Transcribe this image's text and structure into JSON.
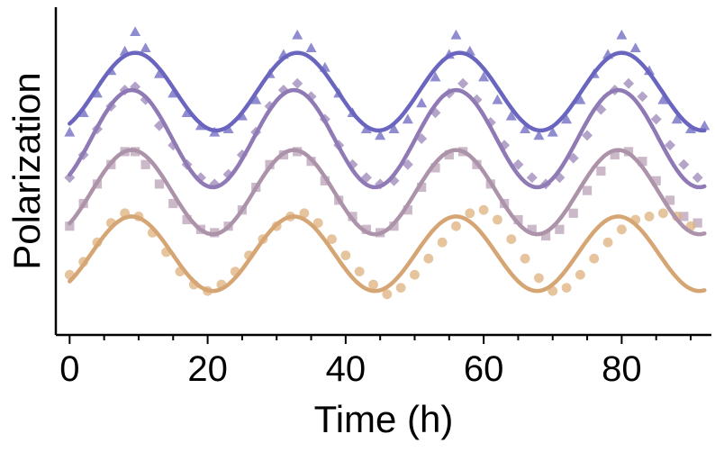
{
  "chart_data": {
    "type": "scatter",
    "title": "",
    "xlabel": "Time (h)",
    "ylabel": "Polarization",
    "xlim": [
      -2,
      93
    ],
    "ylim": [
      0,
      1
    ],
    "x_ticks": [
      0,
      20,
      40,
      60,
      80
    ],
    "x_tick_labels": [
      "0",
      "20",
      "40",
      "60",
      "80"
    ],
    "y_tick_labels": [],
    "grid": false,
    "legend": "none",
    "period_h": 23.5,
    "series": [
      {
        "marker": "triangle",
        "color": "#6a66c0",
        "fit_color": "#6a66c0",
        "x": [
          0,
          2,
          4,
          6,
          8,
          9.5,
          11,
          13,
          15,
          17,
          19,
          21,
          23,
          25,
          27,
          29,
          31,
          33,
          35,
          37,
          39,
          41,
          43,
          45,
          47,
          49,
          51,
          53,
          55,
          56,
          58,
          60,
          62,
          64,
          66,
          68,
          70,
          72,
          74,
          76,
          78,
          80,
          82,
          84,
          86,
          88,
          90,
          92
        ],
        "y": [
          0.62,
          0.68,
          0.74,
          0.81,
          0.87,
          0.93,
          0.88,
          0.8,
          0.74,
          0.68,
          0.64,
          0.62,
          0.63,
          0.67,
          0.72,
          0.8,
          0.86,
          0.92,
          0.88,
          0.82,
          0.74,
          0.68,
          0.63,
          0.61,
          0.63,
          0.66,
          0.71,
          0.79,
          0.86,
          0.92,
          0.87,
          0.79,
          0.72,
          0.67,
          0.63,
          0.61,
          0.62,
          0.66,
          0.72,
          0.8,
          0.86,
          0.92,
          0.88,
          0.81,
          0.72,
          0.66,
          0.63,
          0.64
        ],
        "fit": {
          "mean": 0.745,
          "amplitude": 0.12,
          "phase_h": 9.5
        }
      },
      {
        "marker": "diamond",
        "color": "#9b86b8",
        "fit_color": "#8f7ab5",
        "x": [
          0,
          2,
          4,
          6,
          8,
          9.5,
          11,
          13,
          15,
          17,
          19,
          21,
          23,
          25,
          27,
          29,
          31,
          33,
          35,
          37,
          39,
          41,
          43,
          45,
          47,
          49,
          51,
          53,
          55,
          57,
          59,
          61,
          63,
          65,
          67,
          69,
          71,
          73,
          75,
          77,
          79,
          81,
          83,
          85,
          87,
          89,
          91
        ],
        "y": [
          0.48,
          0.55,
          0.63,
          0.7,
          0.75,
          0.76,
          0.72,
          0.64,
          0.58,
          0.52,
          0.48,
          0.46,
          0.49,
          0.55,
          0.62,
          0.7,
          0.75,
          0.77,
          0.73,
          0.66,
          0.58,
          0.52,
          0.48,
          0.46,
          0.47,
          0.52,
          0.6,
          0.68,
          0.74,
          0.77,
          0.72,
          0.65,
          0.58,
          0.52,
          0.48,
          0.46,
          0.48,
          0.54,
          0.61,
          0.69,
          0.75,
          0.77,
          0.73,
          0.66,
          0.58,
          0.52,
          0.48
        ],
        "fit": {
          "mean": 0.6,
          "amplitude": 0.15,
          "phase_h": 9.0
        }
      },
      {
        "marker": "square",
        "color": "#b9a0b5",
        "fit_color": "#ad93aa",
        "x": [
          0,
          2,
          4,
          6,
          8,
          9.5,
          11,
          13,
          15,
          17,
          19,
          21,
          23,
          25,
          27,
          29,
          31,
          33,
          35,
          37,
          39,
          41,
          43,
          45,
          47,
          49,
          51,
          53,
          55,
          57,
          59,
          61,
          63,
          65,
          67,
          69,
          71,
          73,
          75,
          77,
          79,
          81,
          83,
          85,
          87,
          89,
          91
        ],
        "y": [
          0.33,
          0.4,
          0.46,
          0.52,
          0.56,
          0.56,
          0.52,
          0.46,
          0.4,
          0.35,
          0.32,
          0.31,
          0.33,
          0.38,
          0.45,
          0.52,
          0.55,
          0.56,
          0.53,
          0.47,
          0.41,
          0.36,
          0.32,
          0.31,
          0.33,
          0.38,
          0.45,
          0.51,
          0.55,
          0.56,
          0.52,
          0.46,
          0.4,
          0.35,
          0.32,
          0.3,
          0.32,
          0.37,
          0.44,
          0.5,
          0.55,
          0.56,
          0.53,
          0.47,
          0.41,
          0.36,
          0.34
        ],
        "fit": {
          "mean": 0.435,
          "amplitude": 0.13,
          "phase_h": 9.0
        }
      },
      {
        "marker": "circle",
        "color": "#ddb07e",
        "fit_color": "#d6a574",
        "x": [
          0,
          2,
          4,
          6,
          8,
          10,
          12,
          14,
          16,
          18,
          20,
          22,
          24,
          26,
          28,
          30,
          32,
          34,
          36,
          38,
          40,
          42,
          44,
          46,
          48,
          50,
          52,
          54,
          56,
          58,
          60,
          62,
          64,
          66,
          68,
          70,
          72,
          74,
          76,
          78,
          80,
          82,
          84,
          86,
          88,
          90
        ],
        "y": [
          0.18,
          0.22,
          0.28,
          0.34,
          0.37,
          0.36,
          0.31,
          0.25,
          0.19,
          0.15,
          0.13,
          0.15,
          0.19,
          0.24,
          0.29,
          0.33,
          0.36,
          0.37,
          0.34,
          0.29,
          0.24,
          0.19,
          0.15,
          0.12,
          0.14,
          0.18,
          0.23,
          0.28,
          0.33,
          0.37,
          0.38,
          0.35,
          0.29,
          0.23,
          0.17,
          0.13,
          0.14,
          0.18,
          0.23,
          0.28,
          0.32,
          0.35,
          0.36,
          0.37,
          0.36,
          0.33
        ],
        "fit": {
          "mean": 0.245,
          "amplitude": 0.115,
          "phase_h": 9.0
        }
      }
    ]
  }
}
